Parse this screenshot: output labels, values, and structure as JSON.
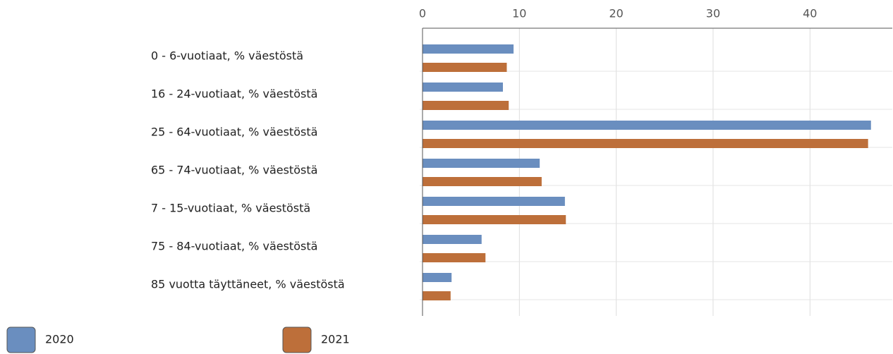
{
  "chart_data": {
    "type": "bar",
    "orientation": "horizontal",
    "categories": [
      "0 - 6-vuotiaat, % väestöstä",
      "16 - 24-vuotiaat, % väestöstä",
      "25 - 64-vuotiaat, % väestöstä",
      "65 - 74-vuotiaat, % väestöstä",
      "7 - 15-vuotiaat, % väestöstä",
      "75 - 84-vuotiaat, % väestöstä",
      "85 vuotta täyttäneet, % väestöstä"
    ],
    "series": [
      {
        "name": "2020",
        "color": "#6a8ebf",
        "values": [
          9.4,
          8.3,
          46.3,
          12.1,
          14.7,
          6.1,
          3.0
        ]
      },
      {
        "name": "2021",
        "color": "#bd6f3a",
        "values": [
          8.7,
          8.9,
          46.0,
          12.3,
          14.8,
          6.5,
          2.9
        ]
      }
    ],
    "xlim": [
      0,
      48.5
    ],
    "xticks": [
      0,
      10,
      20,
      30,
      40
    ],
    "grid": true
  }
}
